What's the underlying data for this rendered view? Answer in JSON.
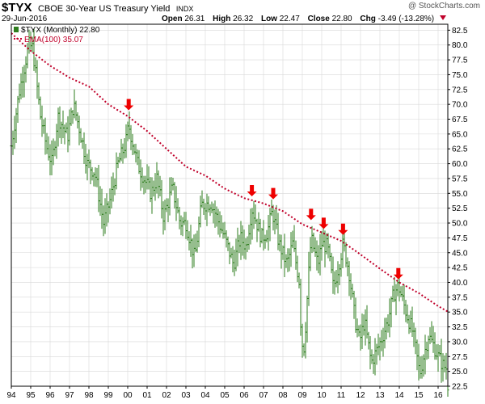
{
  "header": {
    "symbol": "$TYX",
    "name": "CBOE 30-Year US Treasury Yield",
    "exchange": "INDX",
    "date": "29-Jun-2016",
    "credit": "@ StockCharts.com",
    "open_label": "Open",
    "open": "26.31",
    "high_label": "High",
    "high": "26.32",
    "low_label": "Low",
    "low": "22.47",
    "close_label": "Close",
    "close": "22.80",
    "chg_label": "Chg",
    "chg": "-3.49 (-13.28%)"
  },
  "colors": {
    "bars": "#2e7d1e",
    "ema": "#c0002a",
    "arrows": "#ee0000",
    "grid": "#d8d8d8"
  },
  "chart_data": {
    "type": "bar",
    "style": "ohlc-monthly",
    "legend": {
      "position": "top-left",
      "entries": [
        "$TYX (Monthly) 22.80",
        "EMA(100) 35.07"
      ]
    },
    "x_range": [
      1994.0,
      2016.5
    ],
    "ylim": [
      22.5,
      83.5
    ],
    "y_ticks": [
      22.5,
      25.0,
      27.5,
      30.0,
      32.5,
      35.0,
      37.5,
      40.0,
      42.5,
      45.0,
      47.5,
      50.0,
      52.5,
      55.0,
      57.5,
      60.0,
      62.5,
      65.0,
      67.5,
      70.0,
      72.5,
      75.0,
      77.5,
      80.0,
      82.5
    ],
    "y_tick_labels": [
      "22.5",
      "25.0",
      "27.5",
      "30.0",
      "32.5",
      "35.0",
      "37.5",
      "40.0",
      "42.5",
      "45.0",
      "47.5",
      "50.0",
      "52.5",
      "55.0",
      "57.5",
      "60.0",
      "62.5",
      "65.0",
      "67.5",
      "70.0",
      "72.5",
      "75.0",
      "77.5",
      "80.0",
      "82.5"
    ],
    "x_ticks": [
      1994,
      1995,
      1996,
      1997,
      1998,
      1999,
      2000,
      2001,
      2002,
      2003,
      2004,
      2005,
      2006,
      2007,
      2008,
      2009,
      2010,
      2011,
      2012,
      2013,
      2014,
      2015,
      2016
    ],
    "x_tick_labels": [
      "94",
      "95",
      "96",
      "97",
      "98",
      "99",
      "00",
      "01",
      "02",
      "03",
      "04",
      "05",
      "06",
      "07",
      "08",
      "09",
      "10",
      "11",
      "12",
      "13",
      "14",
      "15",
      "16"
    ],
    "price_anchors": [
      [
        1994.0,
        63.0
      ],
      [
        1994.4,
        72.0
      ],
      [
        1994.9,
        80.0
      ],
      [
        1995.1,
        79.5
      ],
      [
        1995.5,
        68.0
      ],
      [
        1995.8,
        63.0
      ],
      [
        1996.1,
        60.0
      ],
      [
        1996.4,
        68.0
      ],
      [
        1996.9,
        64.5
      ],
      [
        1997.2,
        70.0
      ],
      [
        1997.5,
        66.0
      ],
      [
        1997.9,
        60.0
      ],
      [
        1998.3,
        58.5
      ],
      [
        1998.75,
        50.0
      ],
      [
        1999.1,
        54.0
      ],
      [
        1999.5,
        60.0
      ],
      [
        1999.9,
        63.5
      ],
      [
        2000.05,
        66.5
      ],
      [
        2000.5,
        60.0
      ],
      [
        2000.9,
        57.0
      ],
      [
        2001.2,
        55.0
      ],
      [
        2001.5,
        57.5
      ],
      [
        2001.85,
        51.0
      ],
      [
        2002.3,
        56.0
      ],
      [
        2002.7,
        50.0
      ],
      [
        2003.0,
        50.0
      ],
      [
        2003.45,
        44.0
      ],
      [
        2003.8,
        53.0
      ],
      [
        2004.3,
        53.5
      ],
      [
        2004.7,
        50.0
      ],
      [
        2005.0,
        47.5
      ],
      [
        2005.45,
        43.0
      ],
      [
        2005.8,
        47.5
      ],
      [
        2006.1,
        46.0
      ],
      [
        2006.4,
        52.5
      ],
      [
        2006.9,
        47.5
      ],
      [
        2007.2,
        48.5
      ],
      [
        2007.45,
        52.0
      ],
      [
        2007.8,
        46.5
      ],
      [
        2008.2,
        43.0
      ],
      [
        2008.5,
        46.5
      ],
      [
        2008.85,
        40.0
      ],
      [
        2008.95,
        30.0
      ],
      [
        2009.1,
        29.0
      ],
      [
        2009.3,
        40.0
      ],
      [
        2009.45,
        47.5
      ],
      [
        2009.8,
        43.0
      ],
      [
        2010.0,
        46.5
      ],
      [
        2010.3,
        46.0
      ],
      [
        2010.6,
        39.0
      ],
      [
        2010.85,
        42.5
      ],
      [
        2011.1,
        46.5
      ],
      [
        2011.4,
        42.0
      ],
      [
        2011.7,
        34.0
      ],
      [
        2011.95,
        30.0
      ],
      [
        2012.2,
        33.5
      ],
      [
        2012.55,
        26.5
      ],
      [
        2012.9,
        29.0
      ],
      [
        2013.2,
        31.5
      ],
      [
        2013.45,
        34.0
      ],
      [
        2013.7,
        38.0
      ],
      [
        2013.95,
        39.5
      ],
      [
        2014.3,
        35.5
      ],
      [
        2014.7,
        31.5
      ],
      [
        2014.9,
        27.5
      ],
      [
        2015.05,
        24.5
      ],
      [
        2015.25,
        27.5
      ],
      [
        2015.5,
        31.0
      ],
      [
        2015.75,
        29.5
      ],
      [
        2016.0,
        27.5
      ],
      [
        2016.25,
        26.0
      ],
      [
        2016.45,
        25.5
      ],
      [
        2016.5,
        22.8
      ]
    ],
    "ema_anchors": [
      [
        1994.0,
        82.0
      ],
      [
        1995.0,
        79.0
      ],
      [
        1996.0,
        76.5
      ],
      [
        1997.0,
        74.5
      ],
      [
        1998.0,
        73.0
      ],
      [
        1999.0,
        70.0
      ],
      [
        2000.0,
        68.0
      ],
      [
        2001.0,
        65.5
      ],
      [
        2002.0,
        62.5
      ],
      [
        2003.0,
        59.5
      ],
      [
        2004.0,
        58.0
      ],
      [
        2005.0,
        55.8
      ],
      [
        2006.0,
        54.2
      ],
      [
        2007.0,
        53.3
      ],
      [
        2008.0,
        52.0
      ],
      [
        2009.0,
        49.8
      ],
      [
        2010.0,
        48.4
      ],
      [
        2011.0,
        47.0
      ],
      [
        2012.0,
        44.7
      ],
      [
        2013.0,
        42.3
      ],
      [
        2014.0,
        40.0
      ],
      [
        2015.0,
        38.2
      ],
      [
        2016.0,
        36.0
      ],
      [
        2016.5,
        35.07
      ]
    ],
    "annotations": [
      {
        "type": "down-arrow",
        "x": 2000.05,
        "y": 69.0
      },
      {
        "type": "down-arrow",
        "x": 2006.4,
        "y": 54.5
      },
      {
        "type": "down-arrow",
        "x": 2007.5,
        "y": 54.0
      },
      {
        "type": "down-arrow",
        "x": 2009.45,
        "y": 50.5
      },
      {
        "type": "down-arrow",
        "x": 2010.1,
        "y": 49.0
      },
      {
        "type": "down-arrow",
        "x": 2011.1,
        "y": 48.0
      },
      {
        "type": "down-arrow",
        "x": 2013.95,
        "y": 40.5
      }
    ]
  }
}
